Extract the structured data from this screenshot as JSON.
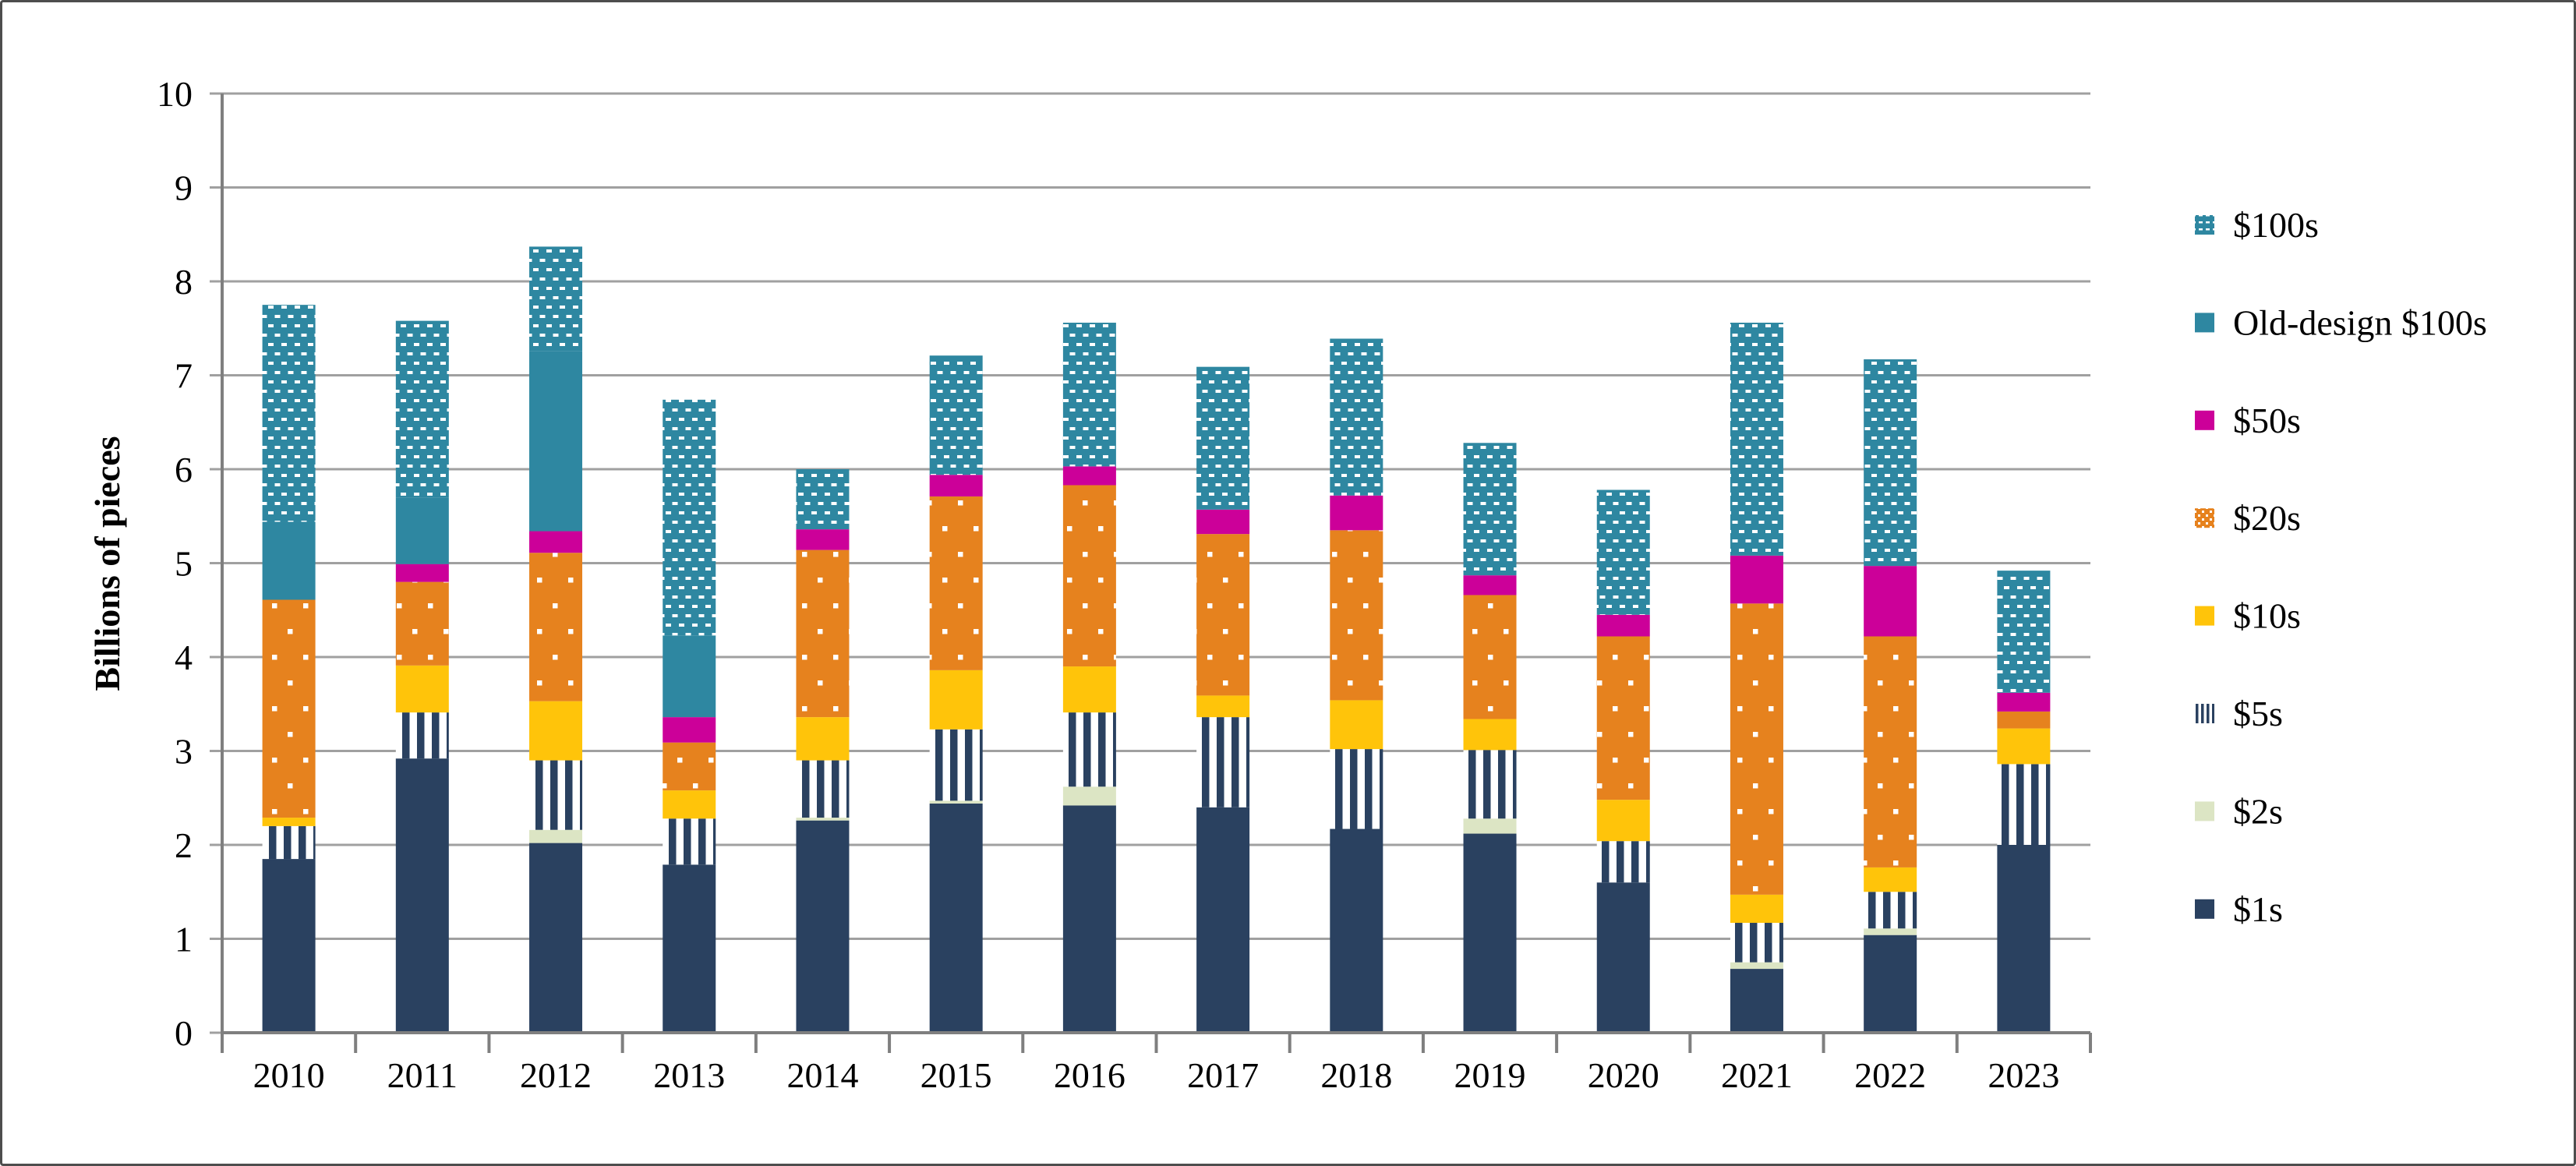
{
  "figure": {
    "background": "#ffffff",
    "border_color": "#4d4d4d"
  },
  "axis_style": {
    "gridline_color": "#a0a0a0",
    "axis_line_color": "#7f7f7f",
    "text_color": "#000000"
  },
  "chart_data": {
    "type": "bar",
    "stacked": true,
    "title": "",
    "xlabel": "",
    "ylabel": "Billions of pieces",
    "ylim": [
      0,
      10
    ],
    "ytick_step": 1,
    "ytick_labels": [
      "0",
      "1",
      "2",
      "3",
      "4",
      "5",
      "6",
      "7",
      "8",
      "9",
      "10"
    ],
    "grid": "horizontal",
    "legend_position": "right",
    "categories": [
      "2010",
      "2011",
      "2012",
      "2013",
      "2014",
      "2015",
      "2016",
      "2017",
      "2018",
      "2019",
      "2020",
      "2021",
      "2022",
      "2023"
    ],
    "series": [
      {
        "name": "$1s",
        "fill": "solid",
        "color": "#2a4160",
        "values": [
          1.85,
          2.92,
          2.02,
          1.79,
          2.26,
          2.44,
          2.42,
          2.4,
          2.17,
          2.12,
          1.6,
          0.68,
          1.04,
          2.0
        ]
      },
      {
        "name": "$2s",
        "fill": "solid",
        "color": "#dce5c4",
        "values": [
          0,
          0,
          0.14,
          0,
          0.03,
          0.03,
          0.2,
          0,
          0,
          0.16,
          0,
          0.07,
          0.07,
          0
        ]
      },
      {
        "name": "$5s",
        "fill": "vertical-stripes",
        "color": "#2a4160",
        "bg": "#ffffff",
        "values": [
          0.35,
          0.49,
          0.74,
          0.49,
          0.61,
          0.76,
          0.79,
          0.96,
          0.85,
          0.73,
          0.44,
          0.42,
          0.39,
          0.86
        ]
      },
      {
        "name": "$10s",
        "fill": "solid",
        "color": "#ffc40a",
        "values": [
          0.09,
          0.5,
          0.63,
          0.3,
          0.46,
          0.63,
          0.49,
          0.23,
          0.52,
          0.33,
          0.44,
          0.3,
          0.26,
          0.38
        ]
      },
      {
        "name": "$20s",
        "fill": "white-dots",
        "color": "#e6821e",
        "values": [
          2.32,
          0.89,
          1.58,
          0.51,
          1.78,
          1.85,
          1.93,
          1.72,
          1.81,
          1.32,
          1.74,
          3.1,
          2.46,
          0.18
        ]
      },
      {
        "name": "$50s",
        "fill": "solid",
        "color": "#cc0099",
        "values": [
          0,
          0.19,
          0.23,
          0.27,
          0.22,
          0.23,
          0.2,
          0.26,
          0.37,
          0.21,
          0.23,
          0.51,
          0.75,
          0.2
        ]
      },
      {
        "name": "Old-design $100s",
        "fill": "solid",
        "color": "#2e87a1",
        "values": [
          0.83,
          0.71,
          1.92,
          0.87,
          0,
          0,
          0,
          0,
          0,
          0,
          0,
          0,
          0,
          0
        ]
      },
      {
        "name": "$100s",
        "fill": "white-dashes",
        "color": "#2e87a1",
        "values": [
          2.31,
          1.88,
          1.11,
          2.51,
          0.64,
          1.27,
          1.53,
          1.52,
          1.67,
          1.41,
          1.33,
          2.48,
          2.2,
          1.3
        ]
      }
    ],
    "legend_order_top_to_bottom": [
      "$100s",
      "Old-design $100s",
      "$50s",
      "$20s",
      "$10s",
      "$5s",
      "$2s",
      "$1s"
    ]
  }
}
